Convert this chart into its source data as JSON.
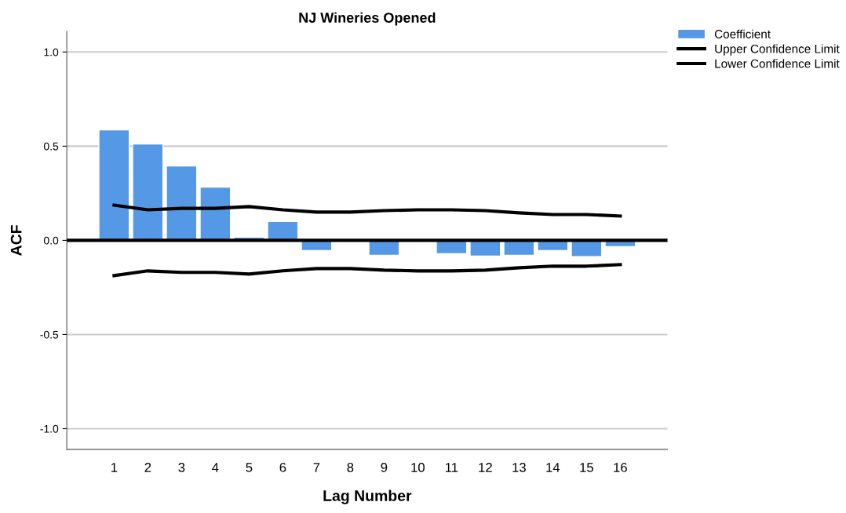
{
  "chart_data": {
    "type": "bar",
    "title": "NJ Wineries Opened",
    "xlabel": "Lag Number",
    "ylabel": "ACF",
    "categories": [
      "1",
      "2",
      "3",
      "4",
      "5",
      "6",
      "7",
      "8",
      "9",
      "10",
      "11",
      "12",
      "13",
      "14",
      "15",
      "16"
    ],
    "series": [
      {
        "name": "Coefficient",
        "color": "#5599e6",
        "values": [
          0.587,
          0.512,
          0.395,
          0.283,
          0.017,
          0.1,
          -0.054,
          null,
          -0.079,
          null,
          -0.071,
          -0.083,
          -0.079,
          -0.054,
          -0.087,
          -0.033
        ]
      },
      {
        "name": "Upper Confidence Limit",
        "type": "line",
        "color": "#000000",
        "values": [
          0.187,
          0.162,
          0.17,
          0.17,
          0.179,
          0.162,
          0.15,
          0.15,
          0.158,
          0.162,
          0.162,
          0.158,
          0.146,
          0.137,
          0.137,
          0.129
        ]
      },
      {
        "name": "Lower Confidence Limit",
        "type": "line",
        "color": "#000000",
        "values": [
          -0.187,
          -0.162,
          -0.17,
          -0.17,
          -0.179,
          -0.162,
          -0.15,
          -0.15,
          -0.158,
          -0.162,
          -0.162,
          -0.158,
          -0.146,
          -0.137,
          -0.137,
          -0.129
        ]
      }
    ],
    "ylim": [
      -1.11,
      1.11
    ],
    "yticks": [
      {
        "value": -1.0,
        "label": "-1.0"
      },
      {
        "value": -0.5,
        "label": "-0.5"
      },
      {
        "value": 0.0,
        "label": "0.0"
      },
      {
        "value": 0.5,
        "label": "0.5"
      },
      {
        "value": 1.0,
        "label": "1.0"
      }
    ],
    "ref_lines": [
      {
        "axis": "y",
        "value": 0,
        "color": "#000000",
        "line_style": "solid"
      }
    ],
    "grid": "y",
    "legend": "top right",
    "marker": "none",
    "line_style": "solid"
  }
}
